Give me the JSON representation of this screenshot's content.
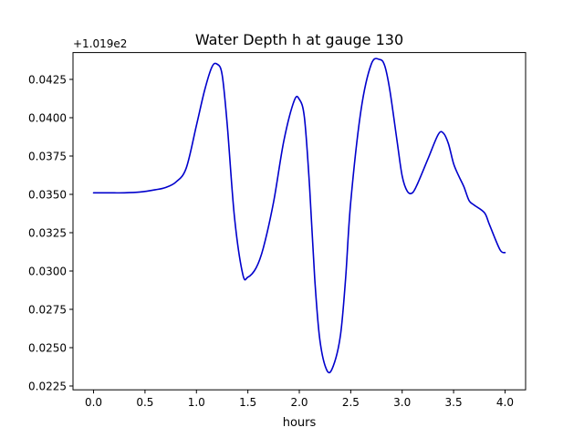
{
  "chart_data": {
    "type": "line",
    "title": "Water Depth h at gauge 130",
    "xlabel": "hours",
    "ylabel": "",
    "offset_label": "+1.019e2",
    "xlim": [
      -0.2,
      4.2
    ],
    "ylim": [
      0.02225,
      0.04425
    ],
    "x_ticks": [
      0.0,
      0.5,
      1.0,
      1.5,
      2.0,
      2.5,
      3.0,
      3.5,
      4.0
    ],
    "x_tick_labels": [
      "0.0",
      "0.5",
      "1.0",
      "1.5",
      "2.0",
      "2.5",
      "3.0",
      "3.5",
      "4.0"
    ],
    "y_ticks": [
      0.0225,
      0.025,
      0.0275,
      0.03,
      0.0325,
      0.035,
      0.0375,
      0.04,
      0.0425
    ],
    "y_tick_labels": [
      "0.0225",
      "0.0250",
      "0.0275",
      "0.0300",
      "0.0325",
      "0.0350",
      "0.0375",
      "0.0400",
      "0.0425"
    ],
    "grid": false,
    "series": [
      {
        "color": "#0000cc",
        "x": [
          0.0,
          0.15,
          0.3,
          0.45,
          0.6,
          0.7,
          0.8,
          0.9,
          1.0,
          1.08,
          1.15,
          1.2,
          1.25,
          1.3,
          1.37,
          1.45,
          1.5,
          1.58,
          1.65,
          1.75,
          1.85,
          1.95,
          2.0,
          2.05,
          2.1,
          2.15,
          2.2,
          2.27,
          2.33,
          2.4,
          2.45,
          2.5,
          2.6,
          2.7,
          2.78,
          2.83,
          2.88,
          2.95,
          3.0,
          3.05,
          3.1,
          3.15,
          3.25,
          3.35,
          3.4,
          3.45,
          3.5,
          3.55,
          3.6,
          3.65,
          3.7,
          3.8,
          3.85,
          3.95,
          4.0
        ],
        "y": [
          0.0351,
          0.0351,
          0.0351,
          0.03515,
          0.0353,
          0.03545,
          0.0358,
          0.0367,
          0.0395,
          0.0418,
          0.0433,
          0.0435,
          0.0428,
          0.0395,
          0.0335,
          0.0298,
          0.0296,
          0.0302,
          0.0315,
          0.0345,
          0.0385,
          0.0411,
          0.0412,
          0.04,
          0.0355,
          0.0295,
          0.0255,
          0.0235,
          0.0238,
          0.0258,
          0.0295,
          0.0345,
          0.0405,
          0.0435,
          0.0438,
          0.0434,
          0.0418,
          0.0385,
          0.0362,
          0.0352,
          0.0351,
          0.0357,
          0.0373,
          0.0389,
          0.039,
          0.0383,
          0.037,
          0.0362,
          0.0355,
          0.0346,
          0.0343,
          0.0338,
          0.033,
          0.0314,
          0.0312
        ]
      }
    ]
  }
}
